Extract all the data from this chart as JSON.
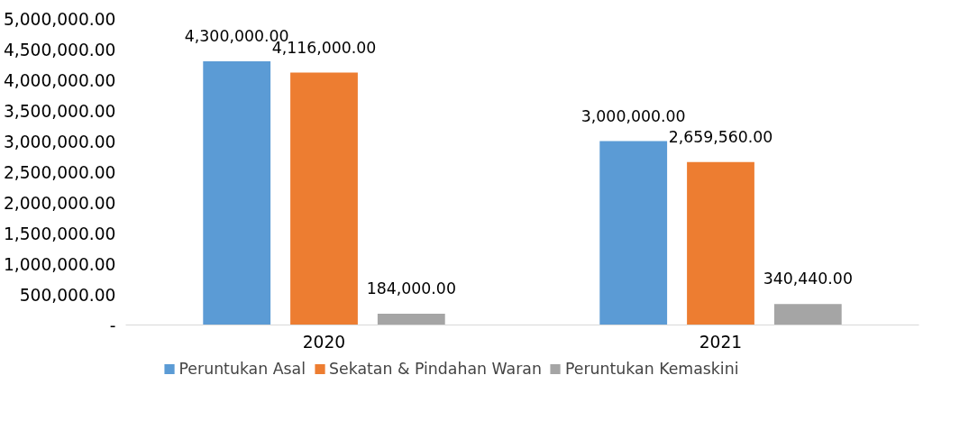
{
  "chart_data": {
    "type": "bar",
    "categories": [
      "2020",
      "2021"
    ],
    "series": [
      {
        "name": "Peruntukan Asal",
        "color": "#5b9bd5",
        "values": [
          4300000,
          3000000
        ],
        "value_labels": [
          "4,300,000.00",
          "3,000,000.00"
        ]
      },
      {
        "name": "Sekatan & Pindahan Waran",
        "color": "#ed7d31",
        "values": [
          4116000,
          2659560
        ],
        "value_labels": [
          "4,116,000.00",
          "2,659,560.00"
        ]
      },
      {
        "name": "Peruntukan Kemaskini",
        "color": "#a5a5a5",
        "values": [
          184000,
          340440
        ],
        "value_labels": [
          "184,000.00",
          "340,440.00"
        ]
      }
    ],
    "ylim": [
      0,
      5000000
    ],
    "yticks": [
      {
        "value": 0,
        "label": "-"
      },
      {
        "value": 500000,
        "label": "500,000.00"
      },
      {
        "value": 1000000,
        "label": "1,000,000.00"
      },
      {
        "value": 1500000,
        "label": "1,500,000.00"
      },
      {
        "value": 2000000,
        "label": "2,000,000.00"
      },
      {
        "value": 2500000,
        "label": "2,500,000.00"
      },
      {
        "value": 3000000,
        "label": "3,000,000.00"
      },
      {
        "value": 3500000,
        "label": "3,500,000.00"
      },
      {
        "value": 4000000,
        "label": "4,000,000.00"
      },
      {
        "value": 4500000,
        "label": "4,500,000.00"
      },
      {
        "value": 5000000,
        "label": "5,000,000.00"
      }
    ],
    "grid": false,
    "legend": "bottom"
  }
}
